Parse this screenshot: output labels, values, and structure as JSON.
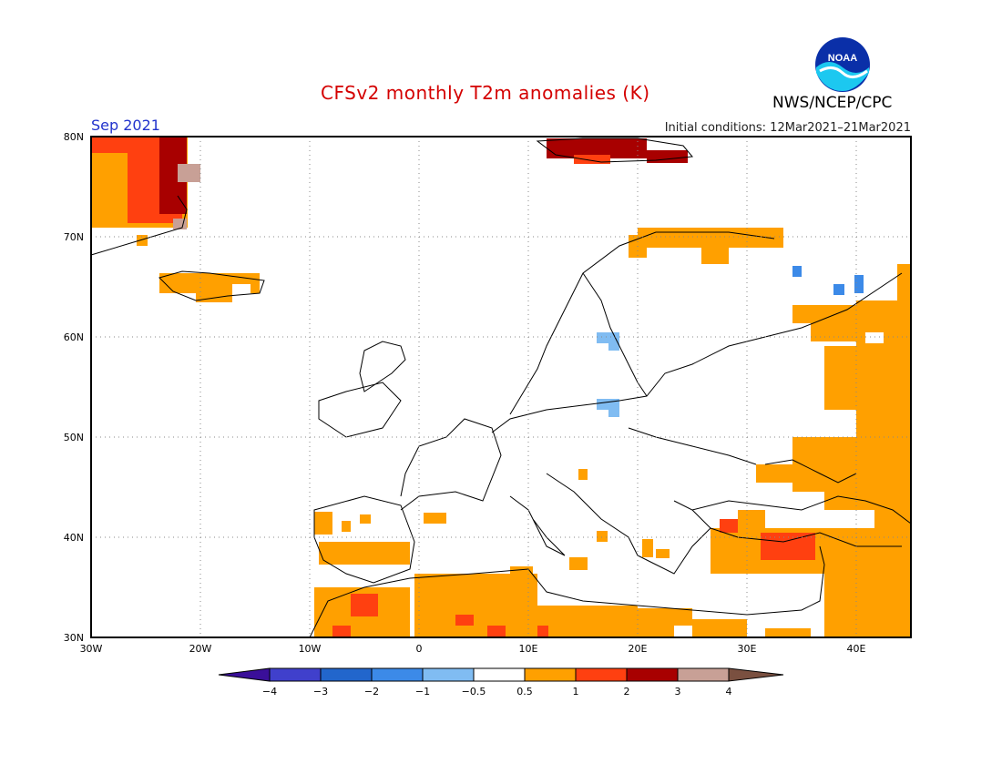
{
  "header": {
    "title": "CFSv2 monthly T2m anomalies (K)",
    "period": "Sep 2021",
    "initial_conditions": "Initial conditions: 12Mar2021–21Mar2021",
    "agency": "NWS/NCEP/CPC",
    "logo_text": "NOAA"
  },
  "map": {
    "lon_labels": [
      "30W",
      "20W",
      "10W",
      "0",
      "10E",
      "20E",
      "30E",
      "40E"
    ],
    "lat_labels": [
      "80N",
      "70N",
      "60N",
      "50N",
      "40N",
      "30N"
    ],
    "lon_range": [
      -30,
      45
    ],
    "lat_range": [
      30,
      80
    ],
    "grid": true
  },
  "colorbar": {
    "labels": [
      "−4",
      "−3",
      "−2",
      "−1",
      "−0.5",
      "0.5",
      "1",
      "2",
      "3",
      "4"
    ],
    "colors": [
      "#3a0f99",
      "#4040cc",
      "#2266cc",
      "#3c8ae8",
      "#80bcf2",
      "#ffffff",
      "#ffa000",
      "#ff4010",
      "#a80000",
      "#c8a096",
      "#7a5040"
    ]
  }
}
